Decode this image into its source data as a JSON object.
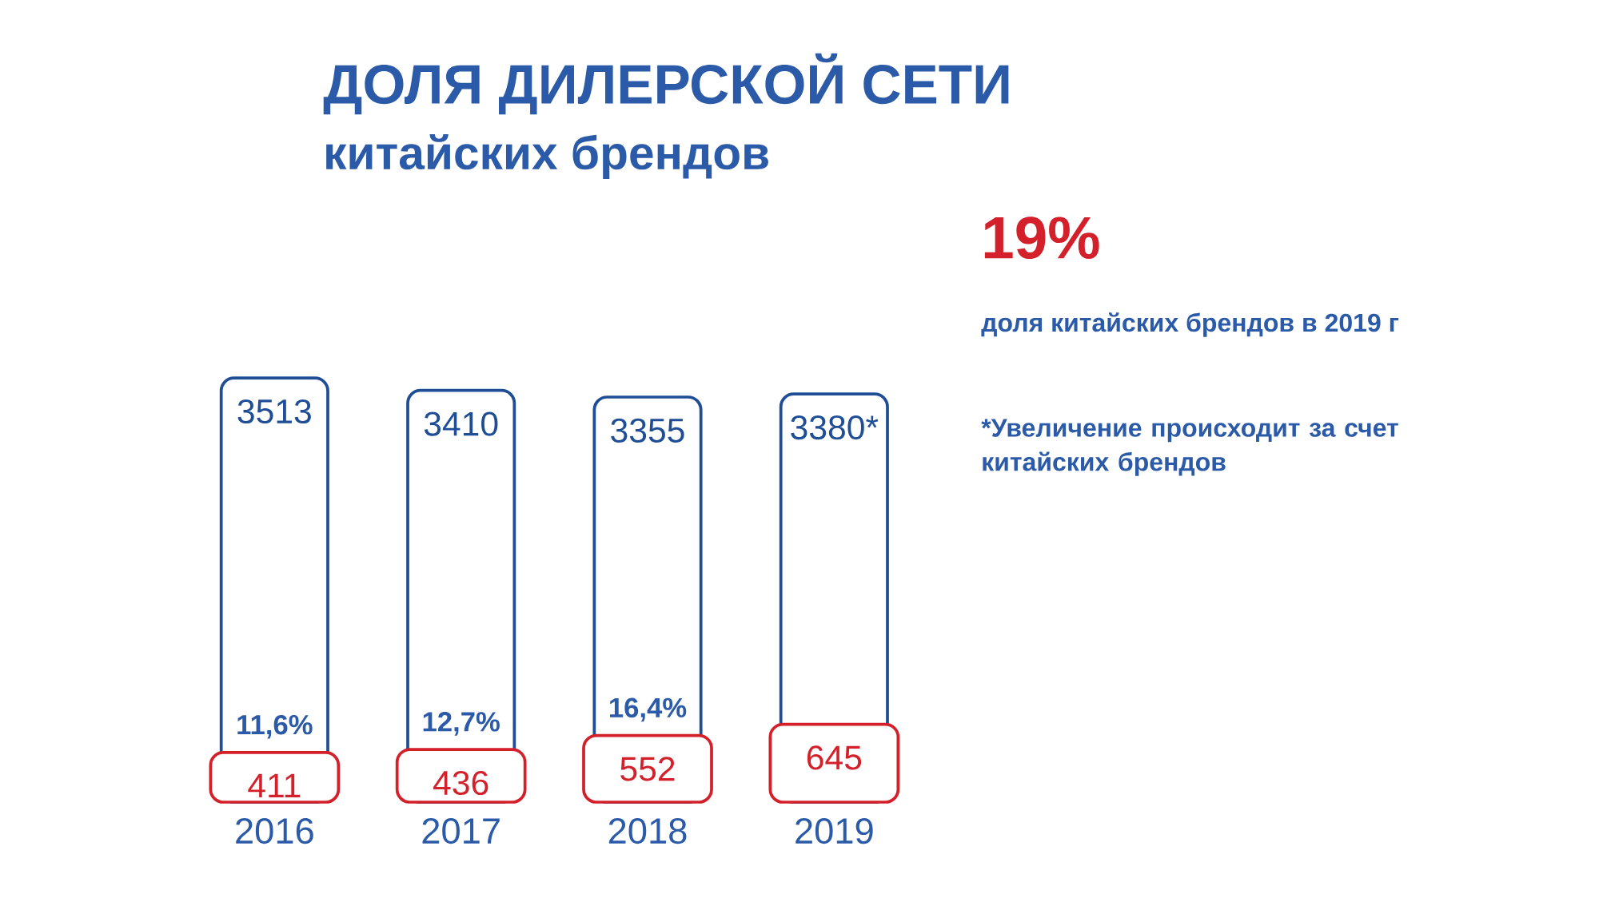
{
  "chart_data": {
    "type": "bar",
    "title": "ДОЛЯ ДИЛЕРСКОЙ СЕТИ",
    "subtitle": "китайских брендов",
    "categories": [
      "2016",
      "2017",
      "2018",
      "2019"
    ],
    "series": [
      {
        "color": "#1f4e96",
        "values": [
          3513,
          3410,
          3355,
          3380
        ],
        "value_labels": [
          "3513",
          "3410",
          "3355",
          "3380*"
        ]
      },
      {
        "color": "#d4202a",
        "values": [
          411,
          436,
          552,
          645
        ],
        "value_labels": [
          "411",
          "436",
          "552",
          "645"
        ]
      }
    ],
    "annotations": [
      "19%",
      "доля китайских брендов в 2019 г",
      "*Увеличение происходит за счет китайских брендов",
      {
        "text": "11,6%",
        "x": "2016",
        "y": 411
      },
      {
        "text": "12,7%",
        "x": "2017",
        "y": 436
      },
      {
        "text": "16,4%",
        "x": "2018",
        "y": 552
      }
    ]
  }
}
